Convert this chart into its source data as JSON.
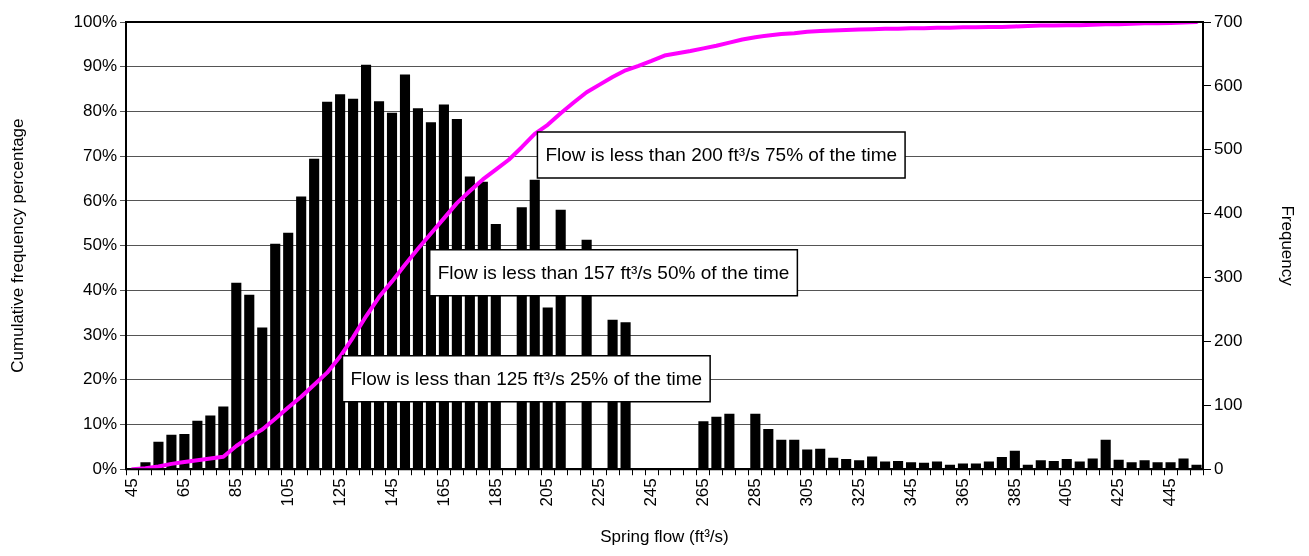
{
  "chart_data": {
    "type": "bar",
    "categories": [
      "45",
      null,
      null,
      null,
      "65",
      null,
      null,
      null,
      "85",
      null,
      null,
      null,
      "105",
      null,
      null,
      null,
      "125",
      null,
      null,
      null,
      "145",
      null,
      null,
      null,
      "165",
      null,
      null,
      null,
      "185",
      null,
      null,
      null,
      "205",
      null,
      null,
      null,
      "225",
      null,
      null,
      null,
      "245",
      null,
      null,
      null,
      "265",
      null,
      null,
      null,
      "285",
      null,
      null,
      null,
      "305",
      null,
      null,
      null,
      "325",
      null,
      null,
      null,
      "345",
      null,
      null,
      null,
      "365",
      null,
      null,
      null,
      "385",
      null,
      null,
      null,
      "405",
      null,
      null,
      null,
      "425",
      null,
      null,
      null,
      "445",
      null,
      null
    ],
    "series": [
      {
        "axis": "y2",
        "color": "#000000",
        "values": [
          0,
          11,
          43,
          54,
          55,
          76,
          84,
          98,
          292,
          273,
          222,
          353,
          370,
          427,
          486,
          575,
          587,
          580,
          633,
          576,
          558,
          618,
          565,
          543,
          571,
          548,
          458,
          450,
          384,
          null,
          410,
          453,
          253,
          406,
          null,
          359,
          null,
          234,
          230,
          null,
          null,
          null,
          null,
          null,
          75,
          82,
          87,
          null,
          87,
          63,
          46,
          46,
          31,
          32,
          18,
          16,
          14,
          20,
          12,
          13,
          11,
          10,
          12,
          7,
          9,
          9,
          12,
          19,
          29,
          7,
          14,
          13,
          16,
          12,
          17,
          46,
          15,
          11,
          14,
          11,
          11,
          17,
          7
        ]
      },
      {
        "type": "line",
        "axis": "y",
        "color": "#ff00ff",
        "marker": "none",
        "values": [
          0,
          0.2,
          0.6,
          1.2,
          1.6,
          2.0,
          2.4,
          2.8,
          5.2,
          7.2,
          8.9,
          11.3,
          13.8,
          16.2,
          18.9,
          21.6,
          25.2,
          29.5,
          34.2,
          38.5,
          42.0,
          45.7,
          49.3,
          52.7,
          56.1,
          59.5,
          62.2,
          64.8,
          67.0,
          69.2,
          72.0,
          75.0,
          77.0,
          79.6,
          82.0,
          84.3,
          86.0,
          87.7,
          89.2,
          90.2,
          91.3,
          92.5,
          93.0,
          93.5,
          94.1,
          94.7,
          95.4,
          96.1,
          96.6,
          97.0,
          97.3,
          97.5,
          97.8,
          98.0,
          98.1,
          98.2,
          98.3,
          98.4,
          98.5,
          98.5,
          98.6,
          98.6,
          98.7,
          98.7,
          98.8,
          98.8,
          98.9,
          98.9,
          99.0,
          99.1,
          99.2,
          99.2,
          99.3,
          99.3,
          99.4,
          99.5,
          99.5,
          99.6,
          99.7,
          99.7,
          99.8,
          99.9,
          100
        ]
      }
    ],
    "ylim": [
      0,
      100
    ],
    "yticks": [
      {
        "value": 0,
        "label": "0%"
      },
      {
        "value": 10,
        "label": "10%"
      },
      {
        "value": 20,
        "label": "20%"
      },
      {
        "value": 30,
        "label": "30%"
      },
      {
        "value": 40,
        "label": "40%"
      },
      {
        "value": 50,
        "label": "50%"
      },
      {
        "value": 60,
        "label": "60%"
      },
      {
        "value": 70,
        "label": "70%"
      },
      {
        "value": 80,
        "label": "80%"
      },
      {
        "value": 90,
        "label": "90%"
      },
      {
        "value": 100,
        "label": "100%"
      }
    ],
    "y2lim": [
      0,
      700
    ],
    "y2ticks": [
      0,
      100,
      200,
      300,
      400,
      500,
      600,
      700
    ],
    "xlabel": "Spring flow (ft³/s)",
    "ylabel": "Cumulative frequency percentage",
    "y2label": "Frequency",
    "grid": "y",
    "annotations": [
      "Flow is less than 200 ft³/s 75% of the time",
      "Flow is less than 157 ft³/s 50% of the time",
      "Flow is less than 125 ft³/s 25% of the time"
    ]
  }
}
